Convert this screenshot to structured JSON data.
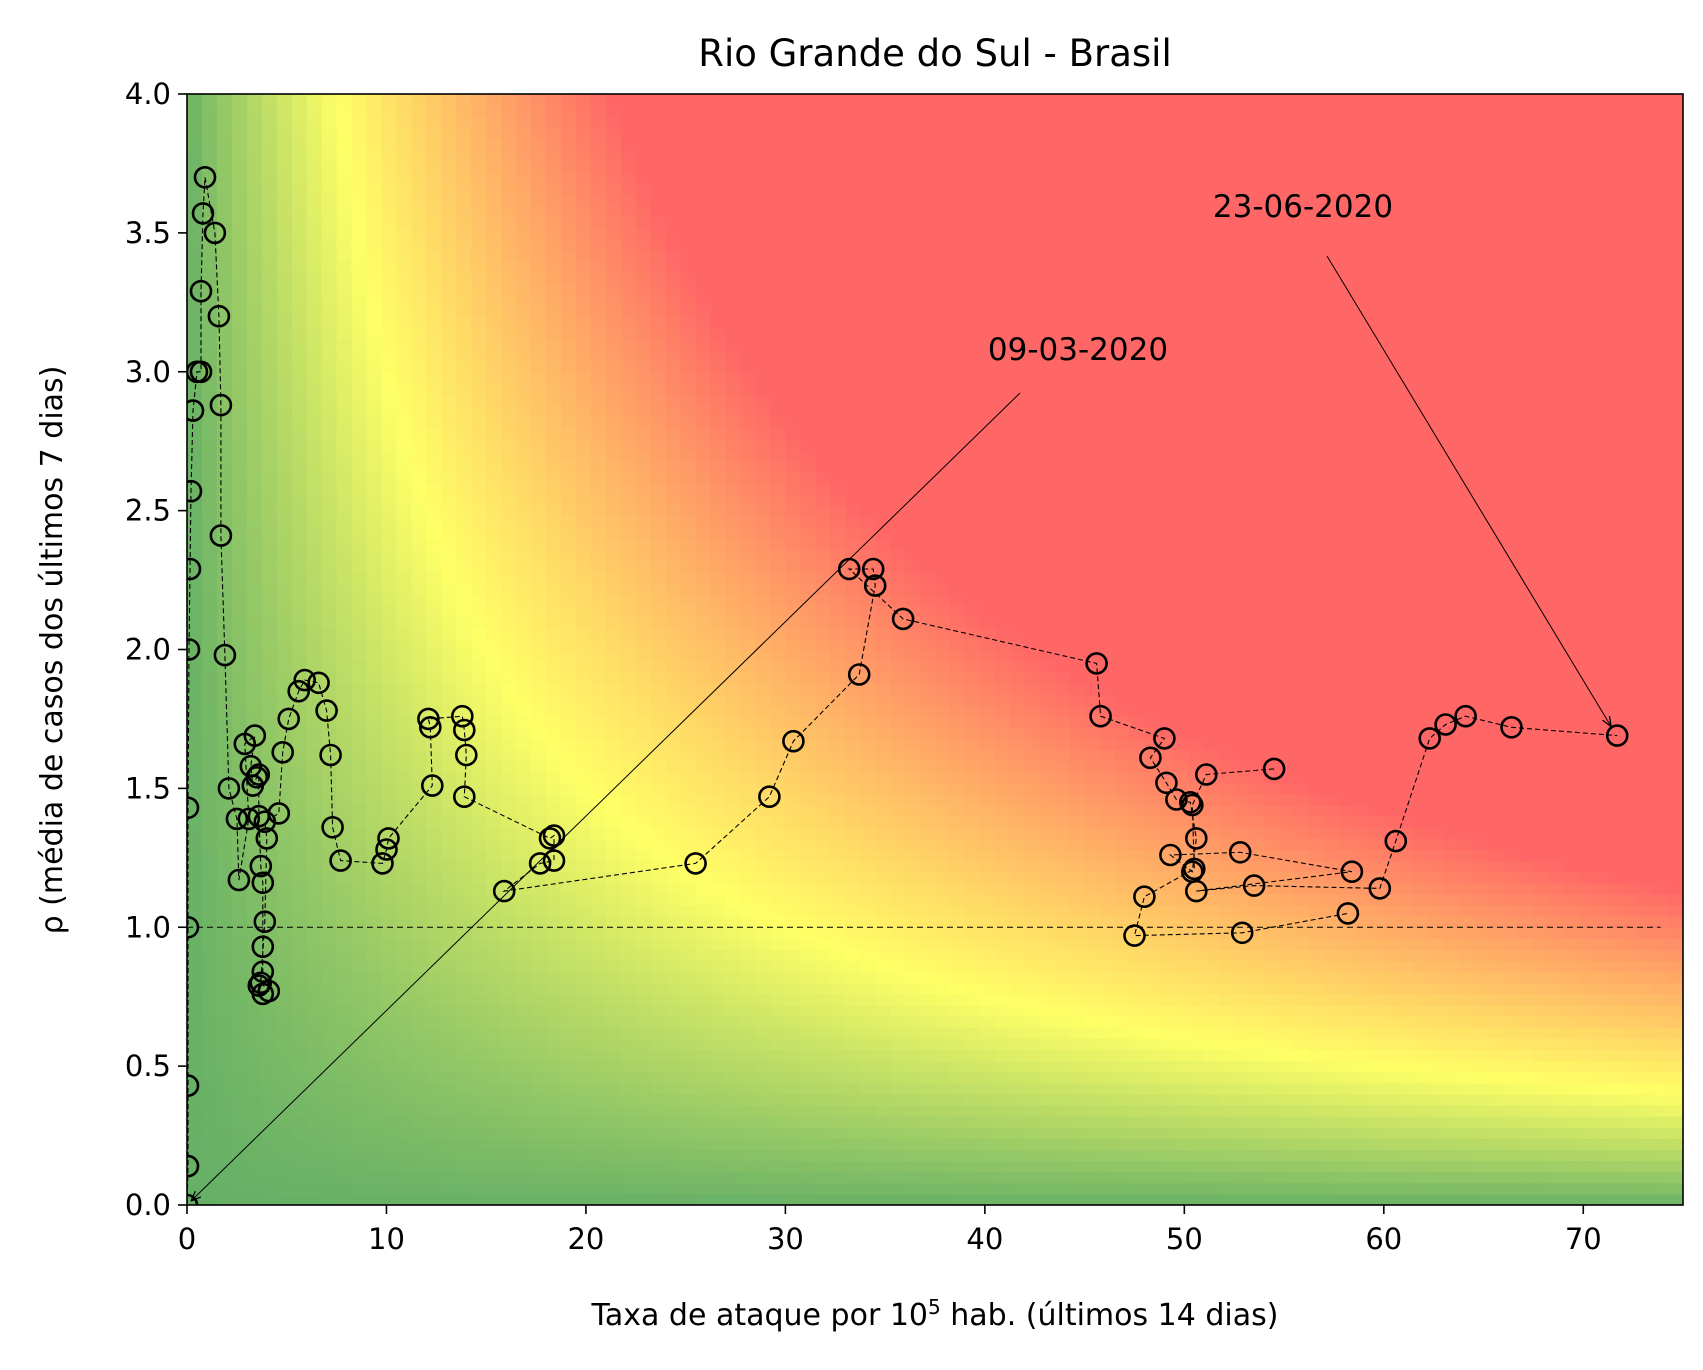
{
  "chart_data": {
    "type": "scatter",
    "title": "Rio Grande do Sul - Brasil",
    "xlabel": "Taxa de ataque por 10⁵ hab. (últimos 14 dias)",
    "xlabel_base": "Taxa de ataque por 10",
    "xlabel_exp": "5",
    "xlabel_rest": " hab. (últimos 14 dias)",
    "ylabel": "ρ (média de casos dos últimos 7 dias)",
    "xlim": [
      0,
      75
    ],
    "ylim": [
      0,
      4
    ],
    "xticks": [
      0,
      10,
      20,
      30,
      40,
      50,
      60,
      70
    ],
    "xtick_labels": [
      "0",
      "10",
      "20",
      "30",
      "40",
      "50",
      "60",
      "70"
    ],
    "yticks": [
      0,
      0.5,
      1,
      1.5,
      2,
      2.5,
      3,
      3.5,
      4
    ],
    "ytick_labels": [
      "0.0",
      "0.5",
      "1.0",
      "1.5",
      "2.0",
      "2.5",
      "3.0",
      "3.5",
      "4.0"
    ],
    "grid": false,
    "reference_line": {
      "y": 1.0,
      "style": "dashed"
    },
    "background": "risk heatmap green → yellow → red (increases with x·y)",
    "colors": {
      "low": "#66b066",
      "mid": "#ffff66",
      "high": "#ff6666",
      "marker": "#000000"
    },
    "annotations": [
      {
        "text": "09-03-2020",
        "point": [
          0,
          0
        ]
      },
      {
        "text": "23-06-2020",
        "point": [
          71.7,
          1.69
        ]
      }
    ],
    "series": [
      {
        "marker": "open circle",
        "line": "dashed",
        "points": [
          [
            0,
            0
          ],
          [
            0.05,
            0.14
          ],
          [
            0.05,
            0.43
          ],
          [
            0.05,
            1.0
          ],
          [
            0.05,
            1.43
          ],
          [
            0.1,
            2.0
          ],
          [
            0.15,
            2.29
          ],
          [
            0.2,
            2.57
          ],
          [
            0.3,
            2.86
          ],
          [
            0.5,
            3.0
          ],
          [
            0.7,
            3.0
          ],
          [
            0.7,
            3.29
          ],
          [
            0.8,
            3.57
          ],
          [
            0.9,
            3.7
          ],
          [
            1.4,
            3.5
          ],
          [
            1.6,
            3.2
          ],
          [
            1.7,
            2.88
          ],
          [
            1.7,
            2.41
          ],
          [
            1.9,
            1.98
          ],
          [
            2.1,
            1.5
          ],
          [
            2.5,
            1.39
          ],
          [
            2.6,
            1.17
          ],
          [
            3.1,
            1.39
          ],
          [
            2.9,
            1.66
          ],
          [
            3.4,
            1.69
          ],
          [
            3.2,
            1.58
          ],
          [
            3.3,
            1.51
          ],
          [
            3.5,
            1.54
          ],
          [
            3.6,
            1.55
          ],
          [
            3.6,
            1.4
          ],
          [
            3.7,
            1.22
          ],
          [
            3.8,
            1.16
          ],
          [
            3.8,
            0.93
          ],
          [
            3.8,
            0.84
          ],
          [
            3.6,
            0.79
          ],
          [
            3.8,
            0.76
          ],
          [
            4.1,
            0.77
          ],
          [
            3.7,
            0.8
          ],
          [
            3.9,
            1.02
          ],
          [
            4.0,
            1.32
          ],
          [
            3.9,
            1.38
          ],
          [
            4.6,
            1.41
          ],
          [
            4.8,
            1.63
          ],
          [
            5.1,
            1.75
          ],
          [
            5.6,
            1.85
          ],
          [
            5.9,
            1.89
          ],
          [
            6.6,
            1.88
          ],
          [
            7.0,
            1.78
          ],
          [
            7.2,
            1.62
          ],
          [
            7.3,
            1.36
          ],
          [
            7.7,
            1.24
          ],
          [
            9.8,
            1.23
          ],
          [
            10.0,
            1.28
          ],
          [
            10.1,
            1.32
          ],
          [
            12.3,
            1.51
          ],
          [
            12.2,
            1.72
          ],
          [
            12.1,
            1.75
          ],
          [
            13.8,
            1.76
          ],
          [
            13.9,
            1.71
          ],
          [
            14.0,
            1.62
          ],
          [
            13.9,
            1.47
          ],
          [
            18.2,
            1.32
          ],
          [
            18.4,
            1.33
          ],
          [
            18.4,
            1.24
          ],
          [
            17.7,
            1.23
          ],
          [
            15.9,
            1.13
          ],
          [
            25.5,
            1.23
          ],
          [
            29.2,
            1.47
          ],
          [
            30.4,
            1.67
          ],
          [
            33.7,
            1.91
          ],
          [
            34.5,
            2.23
          ],
          [
            34.4,
            2.29
          ],
          [
            33.2,
            2.29
          ],
          [
            35.9,
            2.11
          ],
          [
            45.6,
            1.95
          ],
          [
            45.8,
            1.76
          ],
          [
            49.0,
            1.68
          ],
          [
            48.3,
            1.61
          ],
          [
            49.1,
            1.52
          ],
          [
            49.6,
            1.46
          ],
          [
            50.3,
            1.45
          ],
          [
            50.6,
            1.32
          ],
          [
            50.4,
            1.2
          ],
          [
            49.3,
            1.26
          ],
          [
            52.8,
            1.27
          ],
          [
            58.4,
            1.2
          ],
          [
            50.6,
            1.13
          ],
          [
            53.5,
            1.15
          ],
          [
            59.8,
            1.14
          ],
          [
            60.6,
            1.31
          ],
          [
            62.3,
            1.68
          ],
          [
            63.1,
            1.73
          ],
          [
            64.1,
            1.76
          ],
          [
            66.4,
            1.72
          ],
          [
            71.7,
            1.69
          ]
        ]
      },
      {
        "marker": "open circle",
        "line": "dashed",
        "points": [
          [
            54.5,
            1.57
          ],
          [
            51.1,
            1.55
          ],
          [
            50.4,
            1.44
          ],
          [
            50.5,
            1.21
          ],
          [
            48.0,
            1.11
          ],
          [
            47.5,
            0.97
          ],
          [
            52.9,
            0.98
          ],
          [
            58.2,
            1.05
          ]
        ]
      }
    ]
  }
}
